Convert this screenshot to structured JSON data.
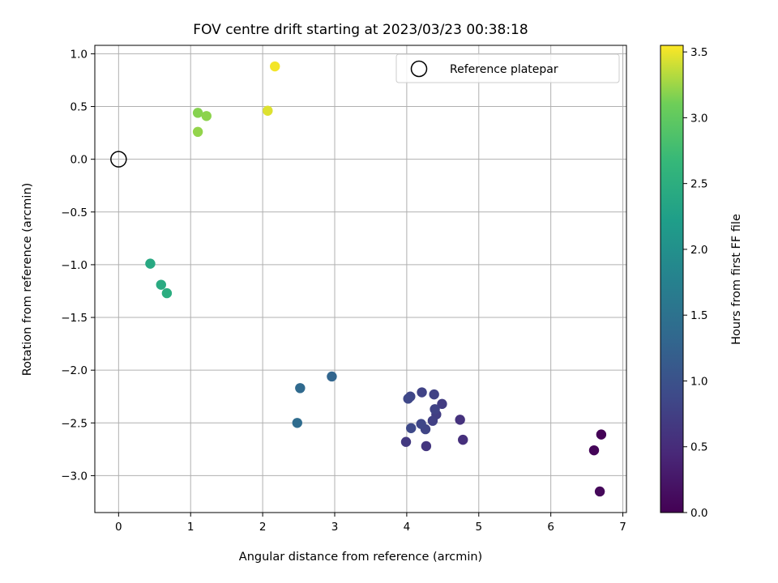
{
  "chart_data": {
    "type": "scatter",
    "title": "FOV centre drift starting at 2023/03/23 00:38:18",
    "xlabel": "Angular distance from reference (arcmin)",
    "ylabel": "Rotation from reference (arcmin)",
    "xlim": [
      -0.33,
      7.05
    ],
    "ylim": [
      -3.35,
      1.08
    ],
    "xticks": [
      0,
      1,
      2,
      3,
      4,
      5,
      6,
      7
    ],
    "xtick_labels": [
      "0",
      "1",
      "2",
      "3",
      "4",
      "5",
      "6",
      "7"
    ],
    "yticks": [
      1.0,
      0.5,
      0.0,
      -0.5,
      -1.0,
      -1.5,
      -2.0,
      -2.5,
      -3.0
    ],
    "ytick_labels": [
      "1.0",
      "0.5",
      "0.0",
      "−0.5",
      "−1.0",
      "−1.5",
      "−2.0",
      "−2.5",
      "−3.0"
    ],
    "grid": true,
    "legend_position": "top-right",
    "legend": [
      {
        "label": "Reference platepar",
        "marker": "open-circle"
      }
    ],
    "reference_point": {
      "x": 0.0,
      "y": 0.0
    },
    "colorbar": {
      "label": "Hours from first FF file",
      "colormap": "viridis",
      "range": [
        0.0,
        3.55
      ],
      "ticks": [
        0.0,
        0.5,
        1.0,
        1.5,
        2.0,
        2.5,
        3.0,
        3.5
      ],
      "tick_labels": [
        "0.0",
        "0.5",
        "1.0",
        "1.5",
        "2.0",
        "2.5",
        "3.0",
        "3.5"
      ]
    },
    "points": [
      {
        "x": 6.7,
        "y": -2.61,
        "c": 0.02
      },
      {
        "x": 6.6,
        "y": -2.76,
        "c": 0.05
      },
      {
        "x": 6.68,
        "y": -3.15,
        "c": 0.08
      },
      {
        "x": 4.78,
        "y": -2.66,
        "c": 0.55
      },
      {
        "x": 4.74,
        "y": -2.47,
        "c": 0.58
      },
      {
        "x": 4.27,
        "y": -2.72,
        "c": 0.62
      },
      {
        "x": 3.99,
        "y": -2.68,
        "c": 0.66
      },
      {
        "x": 4.49,
        "y": -2.32,
        "c": 0.7
      },
      {
        "x": 4.41,
        "y": -2.42,
        "c": 0.73
      },
      {
        "x": 4.36,
        "y": -2.48,
        "c": 0.76
      },
      {
        "x": 4.39,
        "y": -2.37,
        "c": 0.79
      },
      {
        "x": 4.26,
        "y": -2.56,
        "c": 0.82
      },
      {
        "x": 4.2,
        "y": -2.51,
        "c": 0.85
      },
      {
        "x": 4.06,
        "y": -2.55,
        "c": 0.88
      },
      {
        "x": 4.38,
        "y": -2.23,
        "c": 0.78
      },
      {
        "x": 4.21,
        "y": -2.21,
        "c": 0.8
      },
      {
        "x": 4.05,
        "y": -2.25,
        "c": 0.84
      },
      {
        "x": 4.02,
        "y": -2.27,
        "c": 0.86
      },
      {
        "x": 2.96,
        "y": -2.06,
        "c": 1.3
      },
      {
        "x": 2.52,
        "y": -2.17,
        "c": 1.36
      },
      {
        "x": 2.48,
        "y": -2.5,
        "c": 1.4
      },
      {
        "x": 0.44,
        "y": -0.99,
        "c": 2.4
      },
      {
        "x": 0.59,
        "y": -1.19,
        "c": 2.44
      },
      {
        "x": 0.67,
        "y": -1.27,
        "c": 2.48
      },
      {
        "x": 1.1,
        "y": 0.44,
        "c": 3.18
      },
      {
        "x": 1.22,
        "y": 0.41,
        "c": 3.2
      },
      {
        "x": 1.1,
        "y": 0.26,
        "c": 3.22
      },
      {
        "x": 2.07,
        "y": 0.46,
        "c": 3.45
      },
      {
        "x": 2.17,
        "y": 0.88,
        "c": 3.52
      }
    ]
  }
}
